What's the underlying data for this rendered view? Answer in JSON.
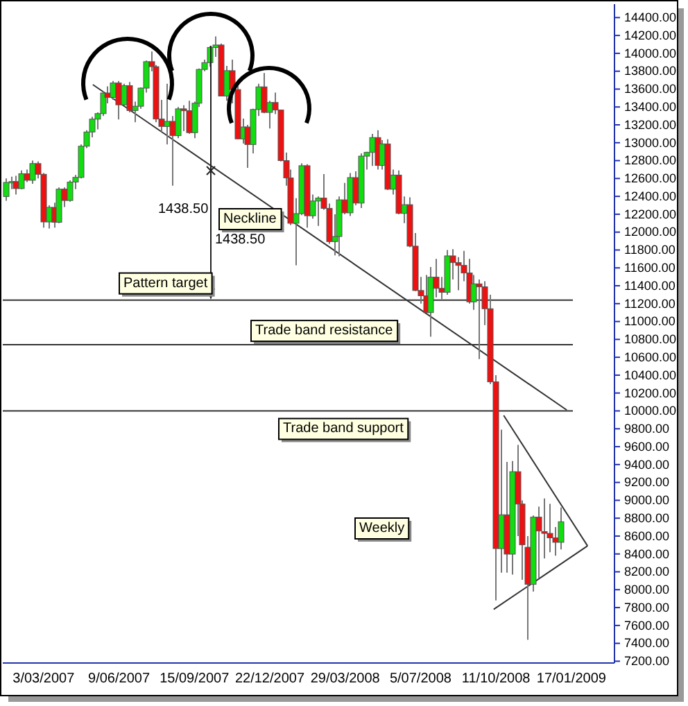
{
  "chart_data": {
    "type": "candlestick",
    "xlim": [
      "2007-01-09",
      "2009-03-14"
    ],
    "ylim": [
      7180,
      14550
    ],
    "xticks": [
      {
        "value": "2007-03-03",
        "label": "3/03/2007"
      },
      {
        "value": "2007-06-09",
        "label": "9/06/2007"
      },
      {
        "value": "2007-09-15",
        "label": "15/09/2007"
      },
      {
        "value": "2007-12-22",
        "label": "22/12/2007"
      },
      {
        "value": "2008-03-29",
        "label": "29/03/2008"
      },
      {
        "value": "2008-07-05",
        "label": "5/07/2008"
      },
      {
        "value": "2008-10-11",
        "label": "11/10/2008"
      },
      {
        "value": "2009-01-17",
        "label": "17/01/2009"
      }
    ],
    "yticks": [
      {
        "value": 7200,
        "label": "7200.00"
      },
      {
        "value": 7400,
        "label": "7400.00"
      },
      {
        "value": 7600,
        "label": "7600.00"
      },
      {
        "value": 7800,
        "label": "7800.00"
      },
      {
        "value": 8000,
        "label": "8000.00"
      },
      {
        "value": 8200,
        "label": "8200.00"
      },
      {
        "value": 8400,
        "label": "8400.00"
      },
      {
        "value": 8600,
        "label": "8600.00"
      },
      {
        "value": 8800,
        "label": "8800.00"
      },
      {
        "value": 9000,
        "label": "9000.00"
      },
      {
        "value": 9200,
        "label": "9200.00"
      },
      {
        "value": 9400,
        "label": "9400.00"
      },
      {
        "value": 9600,
        "label": "9600.00"
      },
      {
        "value": 9800,
        "label": "9800.00"
      },
      {
        "value": 10000,
        "label": "10000.00"
      },
      {
        "value": 10200,
        "label": "10200.00"
      },
      {
        "value": 10400,
        "label": "10400.00"
      },
      {
        "value": 10600,
        "label": "10600.00"
      },
      {
        "value": 10800,
        "label": "10800.00"
      },
      {
        "value": 11000,
        "label": "11000.00"
      },
      {
        "value": 11200,
        "label": "11200.00"
      },
      {
        "value": 11400,
        "label": "11400.00"
      },
      {
        "value": 11600,
        "label": "11600.00"
      },
      {
        "value": 11800,
        "label": "11800.00"
      },
      {
        "value": 12000,
        "label": "12000.00"
      },
      {
        "value": 12200,
        "label": "12200.00"
      },
      {
        "value": 12400,
        "label": "12400.00"
      },
      {
        "value": 12600,
        "label": "12600.00"
      },
      {
        "value": 12800,
        "label": "12800.00"
      },
      {
        "value": 13000,
        "label": "13000.00"
      },
      {
        "value": 13200,
        "label": "13200.00"
      },
      {
        "value": 13400,
        "label": "13400.00"
      },
      {
        "value": 13600,
        "label": "13600.00"
      },
      {
        "value": 13800,
        "label": "13800.00"
      },
      {
        "value": 14000,
        "label": "14000.00"
      },
      {
        "value": 14200,
        "label": "14200.00"
      },
      {
        "value": 14400,
        "label": "14400.00"
      }
    ],
    "grid": false,
    "ref_lines": [
      {
        "axis": "y",
        "value": 11240,
        "label": "Pattern target",
        "color": "#333333"
      },
      {
        "axis": "y",
        "value": 10740,
        "label": "Trade band resistance",
        "color": "#333333"
      },
      {
        "axis": "y",
        "value": 10000,
        "label": "Trade band support",
        "color": "#333333"
      }
    ],
    "annotations": [
      "Neckline",
      "1438.50",
      "1438.50",
      "Weekly"
    ],
    "series": [
      {
        "type": "candlestick",
        "colors": [
          "#11dd11",
          "#11dd11",
          "#ee1111",
          "#11dd11",
          "#ee1111",
          "#11dd11",
          "#ee1111",
          "#ee1111",
          "#11dd11",
          "#ee1111",
          "#11dd11",
          "#ee1111",
          "#11dd11",
          "#11dd11",
          "#11dd11",
          "#11dd11",
          "#11dd11",
          "#11dd11",
          "#11dd11",
          "#ee1111",
          "#11dd11",
          "#ee1111",
          "#11dd11",
          "#ee1111",
          "#11dd11",
          "#11dd11",
          "#11dd11",
          "#ee1111",
          "#ee1111",
          "#ee1111",
          "#11dd11",
          "#ee1111",
          "#11dd11",
          "#ee1111",
          "#ee1111",
          "#11dd11",
          "#11dd11",
          "#11dd11",
          "#11dd11",
          "#11dd11",
          "#ee1111",
          "#11dd11",
          "#ee1111",
          "#ee1111",
          "#11dd11",
          "#ee1111",
          "#11dd11",
          "#11dd11",
          "#ee1111",
          "#11dd11",
          "#ee1111",
          "#ee1111",
          "#ee1111",
          "#ee1111",
          "#11dd11",
          "#11dd11",
          "#ee1111",
          "#11dd11",
          "#11dd11",
          "#ee1111",
          "#ee1111",
          "#11dd11",
          "#11dd11",
          "#ee1111",
          "#11dd11",
          "#ee1111",
          "#11dd11",
          "#11dd11",
          "#11dd11",
          "#ee1111",
          "#11dd11",
          "#ee1111",
          "#11dd11",
          "#ee1111",
          "#11dd11",
          "#ee1111",
          "#ee1111",
          "#ee1111",
          "#ee1111",
          "#11dd11",
          "#ee1111",
          "#ee1111",
          "#11dd11",
          "#ee1111",
          "#ee1111",
          "#ee1111",
          "#ee1111",
          "#11dd11",
          "#ee1111",
          "#ee1111",
          "#ee1111",
          "#ee1111",
          "#11dd11",
          "#ee1111",
          "#11dd11",
          "#ee1111",
          "#ee1111",
          "#ee1111",
          "#11dd11",
          "#ee1111",
          "#ee1111",
          "#ee1111",
          "#ee1111",
          "#11dd11"
        ],
        "x": [
          "2007-01-12",
          "2007-01-19",
          "2007-01-26",
          "2007-02-02",
          "2007-02-09",
          "2007-02-16",
          "2007-02-23",
          "2007-03-02",
          "2007-03-09",
          "2007-03-16",
          "2007-03-23",
          "2007-03-30",
          "2007-04-06",
          "2007-04-13",
          "2007-04-20",
          "2007-04-27",
          "2007-05-04",
          "2007-05-11",
          "2007-05-18",
          "2007-05-25",
          "2007-06-01",
          "2007-06-08",
          "2007-06-15",
          "2007-06-22",
          "2007-06-29",
          "2007-07-06",
          "2007-07-13",
          "2007-07-20",
          "2007-07-27",
          "2007-08-03",
          "2007-08-10",
          "2007-08-17",
          "2007-08-24",
          "2007-08-31",
          "2007-09-07",
          "2007-09-14",
          "2007-09-21",
          "2007-09-28",
          "2007-10-05",
          "2007-10-12",
          "2007-10-19",
          "2007-10-26",
          "2007-11-02",
          "2007-11-09",
          "2007-11-16",
          "2007-11-23",
          "2007-11-30",
          "2007-12-07",
          "2007-12-14",
          "2007-12-21",
          "2007-12-28",
          "2008-01-04",
          "2008-01-11",
          "2008-01-18",
          "2008-01-25",
          "2008-02-01",
          "2008-02-08",
          "2008-02-15",
          "2008-02-22",
          "2008-02-29",
          "2008-03-07",
          "2008-03-14",
          "2008-03-21",
          "2008-03-28",
          "2008-04-04",
          "2008-04-11",
          "2008-04-18",
          "2008-04-25",
          "2008-05-02",
          "2008-05-09",
          "2008-05-16",
          "2008-05-23",
          "2008-05-30",
          "2008-06-06",
          "2008-06-13",
          "2008-06-20",
          "2008-06-27",
          "2008-07-04",
          "2008-07-11",
          "2008-07-18",
          "2008-07-25",
          "2008-08-01",
          "2008-08-08",
          "2008-08-15",
          "2008-08-22",
          "2008-08-29",
          "2008-09-05",
          "2008-09-12",
          "2008-09-19",
          "2008-09-26",
          "2008-10-03",
          "2008-10-10",
          "2008-10-17",
          "2008-10-24",
          "2008-10-31",
          "2008-11-07",
          "2008-11-14",
          "2008-11-21",
          "2008-11-28",
          "2008-12-05",
          "2008-12-12",
          "2008-12-19",
          "2008-12-26",
          "2009-01-02"
        ],
        "ohlc": [
          [
            12398,
            12600,
            12350,
            12556
          ],
          [
            12556,
            12620,
            12480,
            12566
          ],
          [
            12566,
            12630,
            12420,
            12487
          ],
          [
            12487,
            12690,
            12480,
            12653
          ],
          [
            12653,
            12700,
            12560,
            12580
          ],
          [
            12580,
            12800,
            12540,
            12767
          ],
          [
            12767,
            12790,
            12600,
            12647
          ],
          [
            12647,
            12660,
            12050,
            12114
          ],
          [
            12114,
            12300,
            12040,
            12277
          ],
          [
            12277,
            12330,
            12050,
            12110
          ],
          [
            12110,
            12500,
            12100,
            12481
          ],
          [
            12481,
            12500,
            12280,
            12354
          ],
          [
            12354,
            12580,
            12340,
            12560
          ],
          [
            12560,
            12640,
            12480,
            12612
          ],
          [
            12612,
            12980,
            12600,
            12961
          ],
          [
            12961,
            13140,
            12940,
            13120
          ],
          [
            13120,
            13290,
            13060,
            13264
          ],
          [
            13264,
            13340,
            13150,
            13326
          ],
          [
            13326,
            13570,
            13300,
            13556
          ],
          [
            13556,
            13630,
            13440,
            13507
          ],
          [
            13507,
            13690,
            13480,
            13668
          ],
          [
            13668,
            13690,
            13260,
            13424
          ],
          [
            13424,
            13660,
            13420,
            13639
          ],
          [
            13639,
            13680,
            13340,
            13360
          ],
          [
            13360,
            13460,
            13230,
            13408
          ],
          [
            13408,
            13620,
            13380,
            13611
          ],
          [
            13611,
            13920,
            13560,
            13907
          ],
          [
            13907,
            14020,
            13800,
            13851
          ],
          [
            13851,
            13870,
            13230,
            13265
          ],
          [
            13265,
            13480,
            13120,
            13182
          ],
          [
            13182,
            13660,
            12980,
            13239
          ],
          [
            13239,
            13300,
            12520,
            13079
          ],
          [
            13079,
            13400,
            13050,
            13379
          ],
          [
            13379,
            13420,
            13130,
            13358
          ],
          [
            13358,
            13470,
            13100,
            13113
          ],
          [
            13113,
            13460,
            13050,
            13442
          ],
          [
            13442,
            13830,
            13400,
            13820
          ],
          [
            13820,
            13930,
            13800,
            13896
          ],
          [
            13896,
            14080,
            13850,
            14066
          ],
          [
            14066,
            14190,
            13960,
            14093
          ],
          [
            14093,
            14110,
            13520,
            13522
          ],
          [
            13522,
            13860,
            13470,
            13806
          ],
          [
            13806,
            13930,
            13440,
            13595
          ],
          [
            13595,
            13640,
            13040,
            13043
          ],
          [
            13043,
            13270,
            12990,
            13176
          ],
          [
            13176,
            13200,
            12720,
            12980
          ],
          [
            12980,
            13380,
            12880,
            13372
          ],
          [
            13372,
            13660,
            13300,
            13625
          ],
          [
            13625,
            13780,
            13330,
            13339
          ],
          [
            13339,
            13470,
            13160,
            13450
          ],
          [
            13450,
            13560,
            13320,
            13366
          ],
          [
            13366,
            13370,
            12790,
            12800
          ],
          [
            12800,
            12890,
            12520,
            12606
          ],
          [
            12606,
            12700,
            12080,
            12099
          ],
          [
            12099,
            12380,
            11630,
            12207
          ],
          [
            12207,
            12770,
            12190,
            12743
          ],
          [
            12743,
            12760,
            12050,
            12183
          ],
          [
            12183,
            12420,
            12150,
            12348
          ],
          [
            12348,
            12400,
            12070,
            12381
          ],
          [
            12381,
            12650,
            12250,
            12266
          ],
          [
            12266,
            12320,
            11870,
            11894
          ],
          [
            11894,
            12200,
            11740,
            11951
          ],
          [
            11951,
            12400,
            11730,
            12361
          ],
          [
            12361,
            12550,
            12200,
            12216
          ],
          [
            12216,
            12660,
            12180,
            12610
          ],
          [
            12610,
            12680,
            12300,
            12325
          ],
          [
            12325,
            12880,
            12270,
            12850
          ],
          [
            12850,
            12900,
            12700,
            12892
          ],
          [
            12892,
            13100,
            12740,
            13058
          ],
          [
            13058,
            13140,
            12700,
            12746
          ],
          [
            12746,
            13030,
            12700,
            12986
          ],
          [
            12986,
            13040,
            12470,
            12480
          ],
          [
            12480,
            12700,
            12420,
            12638
          ],
          [
            12638,
            12690,
            12200,
            12210
          ],
          [
            12210,
            12400,
            12100,
            12307
          ],
          [
            12307,
            12390,
            11830,
            11843
          ],
          [
            11843,
            11990,
            11340,
            11347
          ],
          [
            11347,
            11500,
            11200,
            11288
          ],
          [
            11288,
            11520,
            11100,
            11100
          ],
          [
            11100,
            11610,
            10830,
            11496
          ],
          [
            11496,
            11700,
            11270,
            11371
          ],
          [
            11371,
            11500,
            11250,
            11327
          ],
          [
            11327,
            11800,
            11300,
            11734
          ],
          [
            11734,
            11810,
            11470,
            11659
          ],
          [
            11659,
            11720,
            11350,
            11628
          ],
          [
            11628,
            11790,
            11450,
            11543
          ],
          [
            11543,
            11700,
            11200,
            11220
          ],
          [
            11220,
            11520,
            11130,
            11421
          ],
          [
            11421,
            11470,
            10580,
            11388
          ],
          [
            11388,
            11450,
            10960,
            11143
          ],
          [
            11143,
            11300,
            10300,
            10325
          ],
          [
            10325,
            10400,
            7880,
            8460
          ],
          [
            8460,
            9790,
            8190,
            8838
          ],
          [
            8838,
            9430,
            8190,
            8398
          ],
          [
            8398,
            9440,
            8170,
            9320
          ],
          [
            9320,
            9620,
            8600,
            8958
          ],
          [
            8958,
            9000,
            8110,
            8502
          ],
          [
            8475,
            8600,
            7440,
            8060
          ],
          [
            8060,
            8830,
            7980,
            8812
          ],
          [
            8812,
            8930,
            8130,
            8657
          ],
          [
            8650,
            9020,
            8350,
            8630
          ],
          [
            8630,
            8960,
            8420,
            8580
          ],
          [
            8580,
            8700,
            8380,
            8530
          ],
          [
            8530,
            8920,
            8450,
            8760
          ]
        ]
      },
      {
        "type": "line",
        "color": "#333333",
        "x": [
          "2007-05-06",
          "2009-01-11"
        ],
        "values": [
          13650,
          10010
        ]
      },
      {
        "type": "line",
        "color": "#333333",
        "x": [
          "2008-10-21",
          "2009-02-07"
        ],
        "values": [
          9950,
          8490
        ]
      },
      {
        "type": "line",
        "color": "#333333",
        "x": [
          "2008-10-08",
          "2009-02-07"
        ],
        "values": [
          7780,
          8490
        ]
      }
    ]
  }
}
